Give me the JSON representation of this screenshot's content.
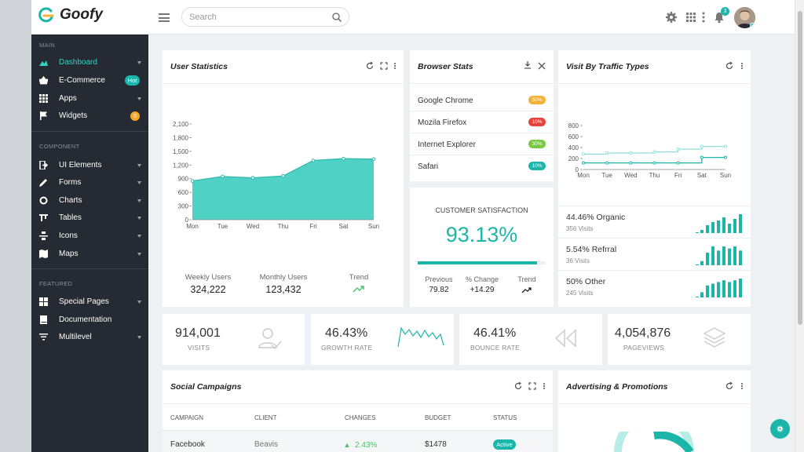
{
  "brand": {
    "name": "Goofy"
  },
  "search": {
    "placeholder": "Search"
  },
  "notifications": {
    "count": "3"
  },
  "sidebar": {
    "sections": [
      {
        "title": "MAIN",
        "items": [
          {
            "label": "Dashboard",
            "icon": "dashboard-icon",
            "active": true
          },
          {
            "label": "E-Commerce",
            "icon": "basket-icon",
            "badge": "Hot",
            "badge_color": "#1bb5a9"
          },
          {
            "label": "Apps",
            "icon": "grid-icon"
          },
          {
            "label": "Widgets",
            "icon": "flag-icon",
            "badge": "5",
            "badge_color": "#f5a623"
          }
        ]
      },
      {
        "title": "COMPONENT",
        "items": [
          {
            "label": "UI Elements",
            "icon": "ui-elements-icon"
          },
          {
            "label": "Forms",
            "icon": "pencil-icon"
          },
          {
            "label": "Charts",
            "icon": "chart-ring-icon"
          },
          {
            "label": "Tables",
            "icon": "table-icon"
          },
          {
            "label": "Icons",
            "icon": "icons-icon"
          },
          {
            "label": "Maps",
            "icon": "map-icon"
          }
        ]
      },
      {
        "title": "FEATURED",
        "items": [
          {
            "label": "Special Pages",
            "icon": "special-pages-icon"
          },
          {
            "label": "Documentation",
            "icon": "book-icon"
          },
          {
            "label": "Multilevel",
            "icon": "filter-icon"
          }
        ]
      }
    ]
  },
  "user_statistics": {
    "title": "User Statistics",
    "stats": [
      {
        "label": "Weekly Users",
        "value": "324,222"
      },
      {
        "label": "Monthly Users",
        "value": "123,432"
      },
      {
        "label": "Trend",
        "value": ""
      }
    ]
  },
  "browser_stats": {
    "title": "Browser Stats",
    "rows": [
      {
        "name": "Google Chrome",
        "pct": "50%",
        "color": "#f5b335"
      },
      {
        "name": "Mozila Firefox",
        "pct": "10%",
        "color": "#e8423b"
      },
      {
        "name": "Internet Explorer",
        "pct": "30%",
        "color": "#7ac943"
      },
      {
        "name": "Safari",
        "pct": "10%",
        "color": "#1bb5a9"
      }
    ]
  },
  "customer_satisfaction": {
    "title": "CUSTOMER SATISFACTION",
    "value": "93.13%",
    "progress": 0.9313,
    "stats": [
      {
        "label": "Previous",
        "value": "79.82"
      },
      {
        "label": "% Change",
        "value": "+14.29"
      },
      {
        "label": "Trend",
        "value": ""
      }
    ]
  },
  "traffic": {
    "title": "Visit By Traffic Types",
    "rows": [
      {
        "value": "44.46% Organic",
        "sub": "356 Visits",
        "bars": [
          2,
          5,
          7,
          8,
          10,
          6,
          9,
          12
        ]
      },
      {
        "value": "5.54% Refrral",
        "sub": "36 Visits",
        "bars": [
          2,
          6,
          9,
          7,
          9,
          8,
          9,
          7
        ]
      },
      {
        "value": "50% Other",
        "sub": "245 Visits",
        "bars": [
          3,
          7,
          8,
          9,
          10,
          9,
          10,
          11
        ]
      }
    ]
  },
  "kpis": [
    {
      "value": "914,001",
      "label": "VISITS",
      "icon": "user-check-icon"
    },
    {
      "value": "46.43%",
      "label": "GROWTH RATE",
      "icon": "sparkline-icon"
    },
    {
      "value": "46.41%",
      "label": "BOUNCE RATE",
      "icon": "rewind-icon"
    },
    {
      "value": "4,054,876",
      "label": "PAGEVIEWS",
      "icon": "layers-icon"
    }
  ],
  "campaigns": {
    "title": "Social Campaigns",
    "headers": [
      "CAMPAIGN",
      "CLIENT",
      "CHANGES",
      "BUDGET",
      "STATUS"
    ],
    "rows": [
      {
        "campaign": "Facebook",
        "client": "Beavis",
        "change": "2.43%",
        "budget": "$1478",
        "status": "Active"
      }
    ]
  },
  "advertising": {
    "title": "Advertising & Promotions"
  },
  "chart_data": [
    {
      "type": "area",
      "categories": [
        "Mon",
        "Tue",
        "Wed",
        "Thu",
        "Fri",
        "Sat",
        "Sun"
      ],
      "values": [
        850,
        950,
        920,
        960,
        1300,
        1340,
        1330
      ],
      "ylim": [
        0,
        2100
      ],
      "yticks": [
        "0",
        "300",
        "600",
        "900",
        "1,200",
        "1,500",
        "1,800",
        "2,100"
      ],
      "color": "#4fd1c5"
    },
    {
      "type": "line",
      "categories": [
        "Mon",
        "Tue",
        "Wed",
        "Thu",
        "Fri",
        "Sat",
        "Sun"
      ],
      "ylim": [
        0,
        800
      ],
      "yticks": [
        "0",
        "200",
        "400",
        "600",
        "800"
      ],
      "series": [
        {
          "values": [
            280,
            300,
            300,
            320,
            370,
            420,
            420
          ],
          "color": "#8de0da"
        },
        {
          "values": [
            120,
            120,
            120,
            120,
            120,
            220,
            220
          ],
          "color": "#1bb5a9"
        }
      ]
    }
  ]
}
